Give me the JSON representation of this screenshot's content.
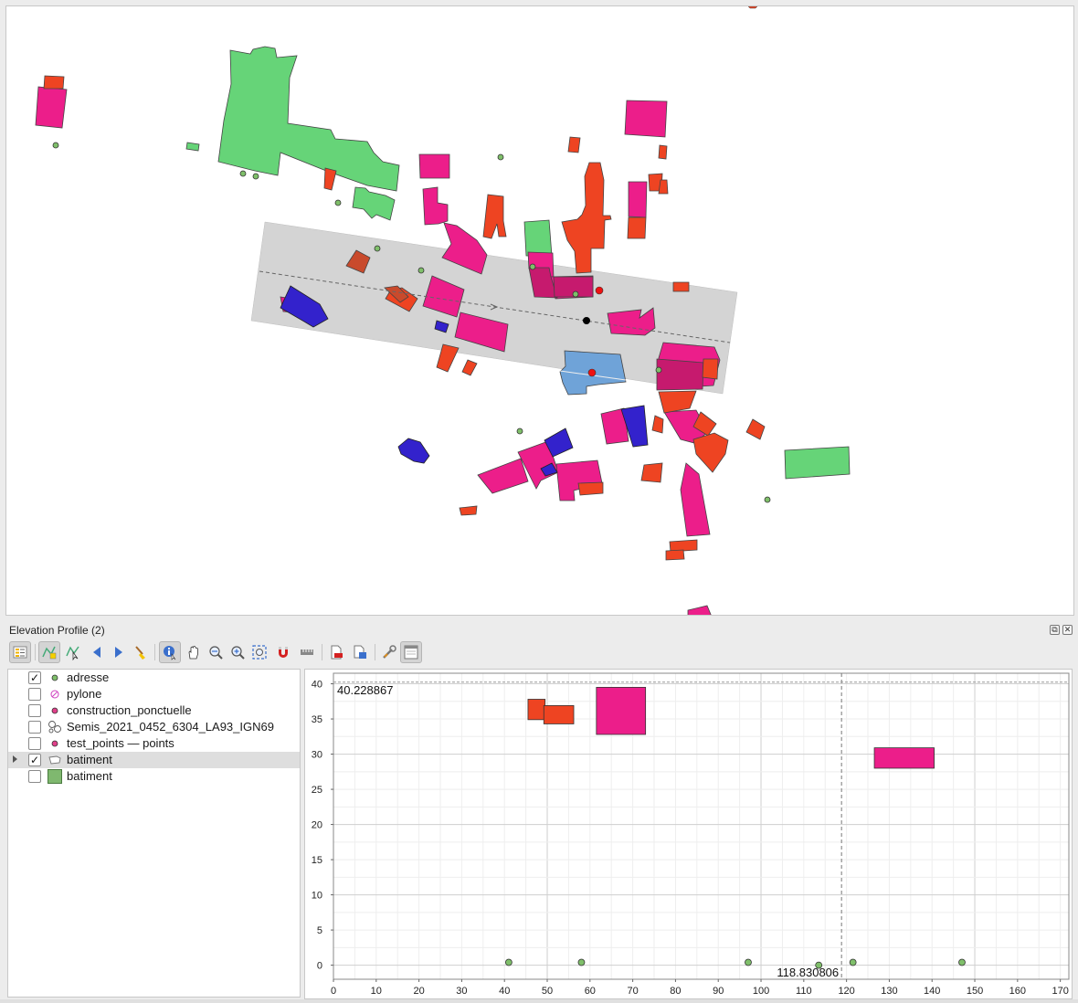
{
  "panel": {
    "title": "Elevation Profile (2)",
    "float_glyph": "⧉",
    "close_glyph": "✕"
  },
  "toolbar": {
    "tools": [
      {
        "name": "layer-tree-toggle-icon",
        "active": true
      },
      {
        "name": "capture-curve-icon",
        "active": true
      },
      {
        "name": "capture-from-feature-icon",
        "active": false
      },
      {
        "name": "back-icon",
        "active": false
      },
      {
        "name": "forward-icon",
        "active": false
      },
      {
        "name": "clear-icon",
        "active": false
      },
      {
        "name": "identify-icon",
        "active": true
      },
      {
        "name": "pan-icon",
        "active": false
      },
      {
        "name": "zoom-x-icon",
        "active": false
      },
      {
        "name": "zoom-icon",
        "active": false
      },
      {
        "name": "zoom-full-icon",
        "active": false
      },
      {
        "name": "snap-icon",
        "active": false
      },
      {
        "name": "measure-icon",
        "active": false
      },
      {
        "name": "export-pdf-icon",
        "active": false
      },
      {
        "name": "export-image-icon",
        "active": false
      },
      {
        "name": "settings-icon",
        "active": false
      },
      {
        "name": "dock-toggle-icon",
        "active": true
      }
    ]
  },
  "layers": [
    {
      "name": "adresse",
      "checked": true,
      "symbol": "green-dot",
      "expandable": false,
      "selected": false
    },
    {
      "name": "pylone",
      "checked": false,
      "symbol": "pylone-icon",
      "expandable": false,
      "selected": false
    },
    {
      "name": "construction_ponctuelle",
      "checked": false,
      "symbol": "pink-dot",
      "expandable": false,
      "selected": false
    },
    {
      "name": "Semis_2021_0452_6304_LA93_IGN69",
      "checked": false,
      "symbol": "point-cloud-icon",
      "expandable": false,
      "selected": false
    },
    {
      "name": "test_points — points",
      "checked": false,
      "symbol": "pink-dot",
      "expandable": false,
      "selected": false
    },
    {
      "name": "batiment",
      "checked": true,
      "symbol": "polygon-outline-icon",
      "expandable": true,
      "selected": true
    },
    {
      "name": "batiment",
      "checked": false,
      "symbol": "green-square",
      "expandable": false,
      "selected": false
    }
  ],
  "chart_data": {
    "type": "scatter",
    "x_range": [
      0,
      172
    ],
    "y_range": [
      -2,
      41.5
    ],
    "x_ticks": [
      0,
      10,
      20,
      30,
      40,
      50,
      60,
      70,
      80,
      90,
      100,
      110,
      120,
      130,
      140,
      150,
      160,
      170
    ],
    "y_ticks": [
      0,
      5,
      10,
      15,
      20,
      25,
      30,
      35,
      40
    ],
    "grid": true,
    "crosshair": {
      "x": 118.830806,
      "y": 40.228867,
      "x_label": "118.830806",
      "y_label": "40.228867"
    },
    "points": [
      {
        "x": 41,
        "y": 0.4
      },
      {
        "x": 58,
        "y": 0.4
      },
      {
        "x": 97,
        "y": 0.4
      },
      {
        "x": 113.5,
        "y": 0.0
      },
      {
        "x": 121.5,
        "y": 0.4
      },
      {
        "x": 147,
        "y": 0.4
      }
    ],
    "boxes": [
      {
        "x0": 45.5,
        "x1": 49.5,
        "y0": 34.9,
        "y1": 37.8,
        "color": "#ee4422"
      },
      {
        "x0": 49.2,
        "x1": 56.2,
        "y0": 34.3,
        "y1": 36.9,
        "color": "#ee4422"
      },
      {
        "x0": 61.5,
        "x1": 73.0,
        "y0": 32.8,
        "y1": 39.5,
        "color": "#ec1e8a"
      },
      {
        "x0": 126.5,
        "x1": 140.5,
        "y0": 28.0,
        "y1": 30.9,
        "color": "#ec1e8a"
      }
    ]
  },
  "colors": {
    "magenta": "#ec1e8a",
    "orange": "#ee4422",
    "green": "#66d478",
    "blue": "#3322cc",
    "steel_blue": "#6fa3d8",
    "point_green": "#7fbf6a",
    "selected_red": "#ee1111",
    "profile_band": "#d4d4d4"
  }
}
